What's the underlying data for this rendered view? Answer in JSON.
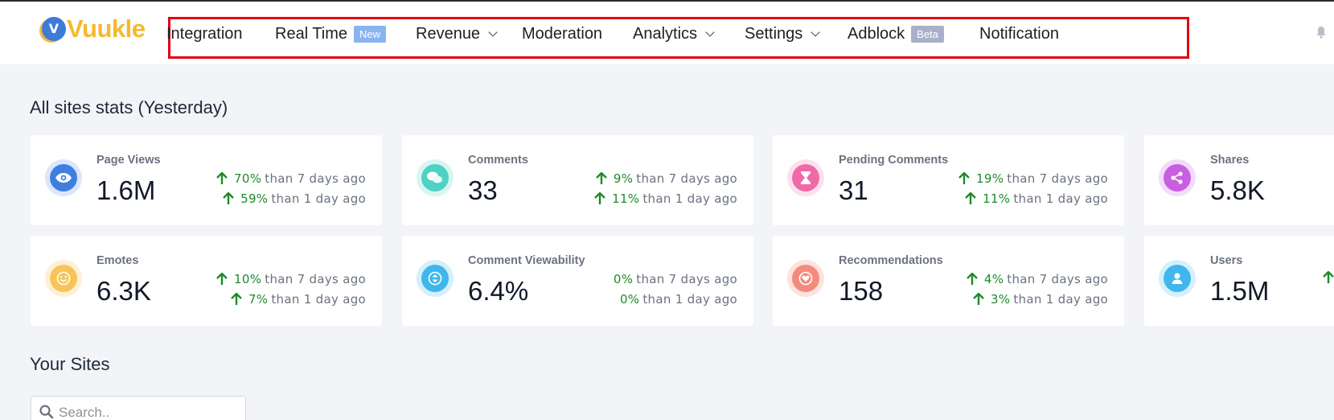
{
  "app": {
    "logo_letter": "V",
    "logo_text": "Vuukle",
    "brand_color": "#f5b82e"
  },
  "nav": {
    "items": [
      {
        "label": "Integration"
      },
      {
        "label": "Real Time",
        "badge": "New"
      },
      {
        "label": "Revenue"
      },
      {
        "label": "Moderation"
      },
      {
        "label": "Analytics"
      },
      {
        "label": "Settings"
      },
      {
        "label": "Adblock",
        "badge": "Beta"
      },
      {
        "label": "Notification"
      }
    ]
  },
  "stats": {
    "title": "All sites stats (Yesterday)",
    "cards": [
      {
        "label": "Page Views",
        "value": "1.6M",
        "icon": "eye-icon",
        "color": "#3f7fe0",
        "change7": "70%",
        "change1": "59%",
        "up7": true,
        "up1": true
      },
      {
        "label": "Comments",
        "value": "33",
        "icon": "chat-icon",
        "color": "#4fd1c5",
        "change7": "9%",
        "change1": "11%",
        "up7": true,
        "up1": true
      },
      {
        "label": "Pending Comments",
        "value": "31",
        "icon": "hourglass-icon",
        "color": "#f06aa8",
        "change7": "19%",
        "change1": "11%",
        "up7": true,
        "up1": true
      },
      {
        "label": "Shares",
        "value": "5.8K",
        "icon": "share-icon",
        "color": "#c95fe0",
        "change7": "",
        "change1": "",
        "up7": false,
        "up1": false
      },
      {
        "label": "Emotes",
        "value": "6.3K",
        "icon": "smiley-icon",
        "color": "#f7c45a",
        "change7": "10%",
        "change1": "7%",
        "up7": true,
        "up1": true
      },
      {
        "label": "Comment Viewability",
        "value": "6.4%",
        "icon": "vertical-arrows-icon",
        "color": "#3fb7ec",
        "change7": "0%",
        "change1": "0%",
        "up7": false,
        "up1": false
      },
      {
        "label": "Recommendations",
        "value": "158",
        "icon": "heart-icon",
        "color": "#f38b7d",
        "change7": "4%",
        "change1": "3%",
        "up7": true,
        "up1": true
      },
      {
        "label": "Users",
        "value": "1.5M",
        "icon": "user-icon",
        "color": "#3fb7ec",
        "change7": "",
        "change1": "",
        "up7": true,
        "up1": false
      }
    ],
    "than7": "than 7 days ago",
    "than1": "than 1 day ago"
  },
  "sites": {
    "title": "Your Sites",
    "search_placeholder": "Search.."
  }
}
